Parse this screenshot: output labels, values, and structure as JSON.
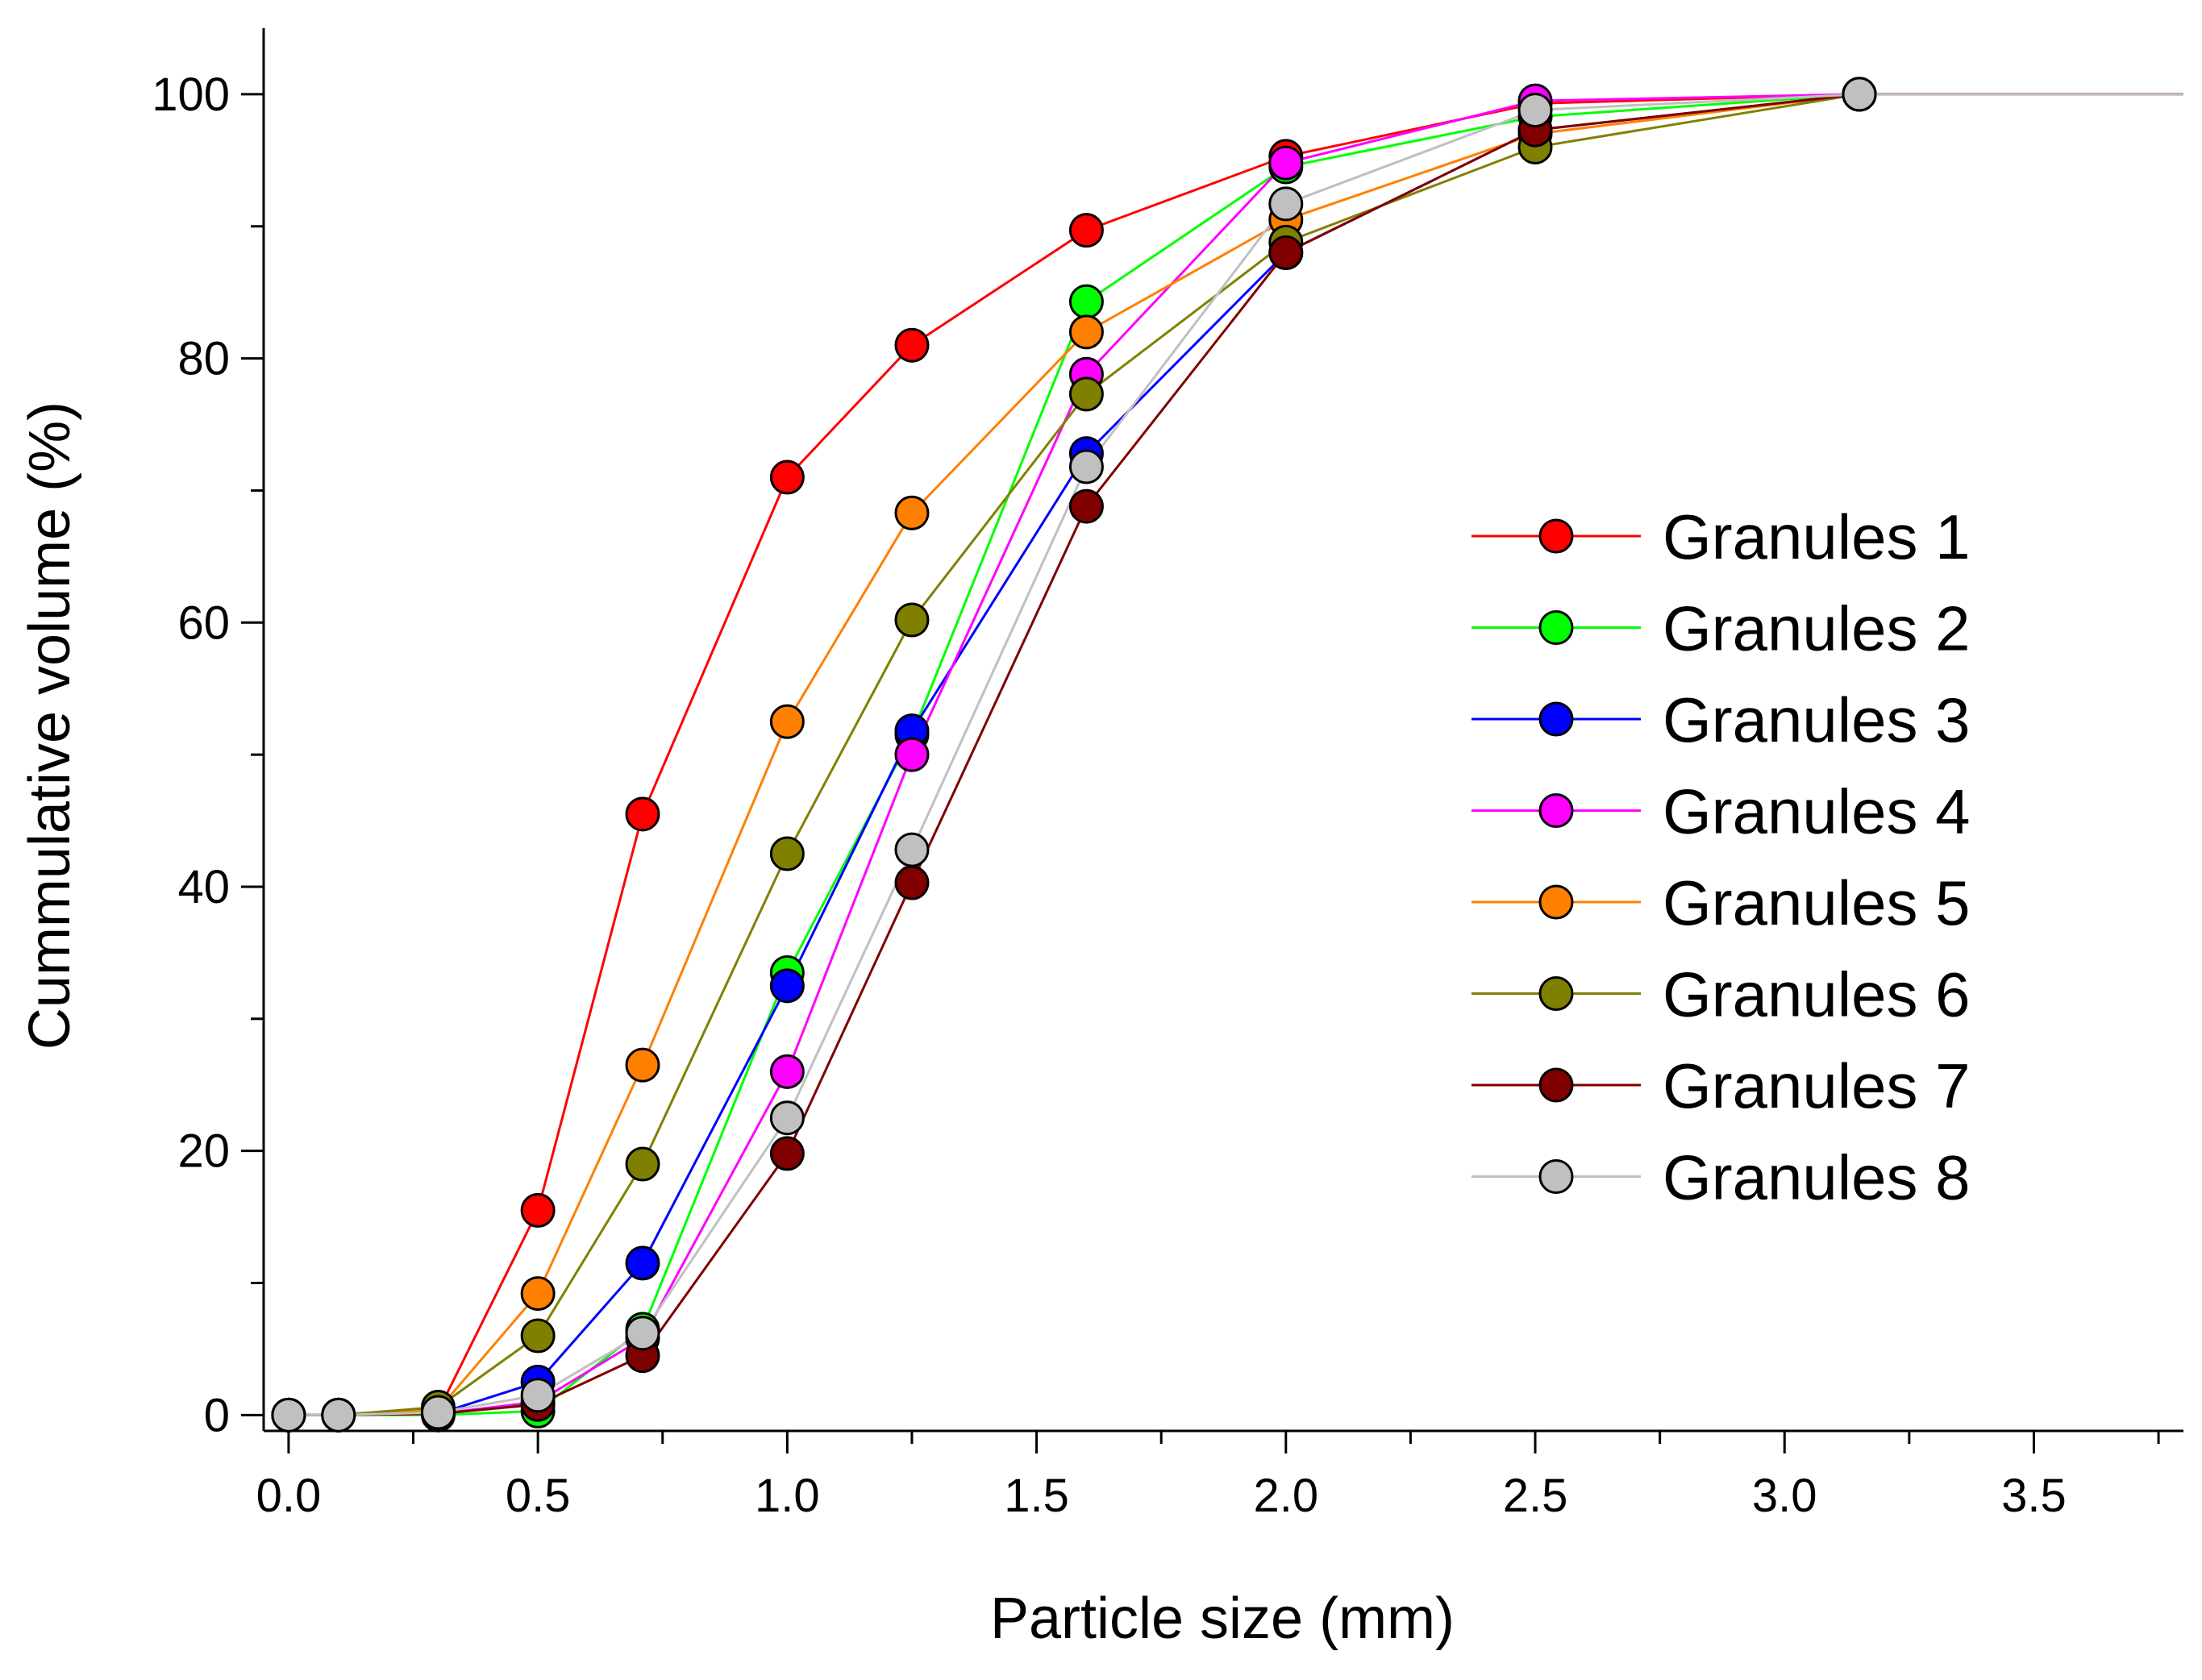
{
  "chart_data": {
    "type": "line",
    "title": "",
    "xlabel": "Particle size (mm)",
    "ylabel": "Cummulative volume (%)",
    "xlim": [
      -0.05,
      3.8
    ],
    "ylim": [
      -1.2,
      105
    ],
    "xticks": [
      0.0,
      0.5,
      1.0,
      1.5,
      2.0,
      2.5,
      3.0,
      3.5
    ],
    "xtick_labels": [
      "0.0",
      "0.5",
      "1.0",
      "1.5",
      "2.0",
      "2.5",
      "3.0",
      "3.5"
    ],
    "yticks": [
      0,
      20,
      40,
      60,
      80,
      100
    ],
    "ytick_labels": [
      "0",
      "20",
      "40",
      "60",
      "80",
      "100"
    ],
    "grid": false,
    "legend_position": "right",
    "series": [
      {
        "name": "Granules 1",
        "color": "#ff0000",
        "x": [
          0,
          0.1,
          0.3,
          0.5,
          0.71,
          1.0,
          1.25,
          1.6,
          2.0,
          2.5,
          3.15,
          3.8
        ],
        "y": [
          0,
          0,
          0.3,
          15.5,
          45.5,
          71,
          81,
          89.7,
          95.3,
          99.3,
          100,
          100
        ]
      },
      {
        "name": "Granules 2",
        "color": "#00ff00",
        "x": [
          0,
          0.1,
          0.3,
          0.5,
          0.71,
          1.0,
          1.25,
          1.6,
          2.0,
          2.5,
          3.15,
          3.8
        ],
        "y": [
          0,
          0,
          0,
          0.3,
          6.5,
          33.5,
          51.5,
          84.3,
          94.5,
          98.3,
          100,
          100
        ]
      },
      {
        "name": "Granules 3",
        "color": "#0000ff",
        "x": [
          0,
          0.1,
          0.3,
          0.5,
          0.71,
          1.0,
          1.25,
          1.6,
          2.0,
          2.5,
          3.15,
          3.8
        ],
        "y": [
          0,
          0,
          0.1,
          2.5,
          11.5,
          32.5,
          51.8,
          72.8,
          88,
          97.3,
          100,
          100
        ]
      },
      {
        "name": "Granules 4",
        "color": "#ff00ff",
        "x": [
          0,
          0.1,
          0.3,
          0.5,
          0.71,
          1.0,
          1.25,
          1.6,
          2.0,
          2.5,
          3.15,
          3.8
        ],
        "y": [
          0,
          0,
          0.1,
          1,
          5.8,
          26,
          50,
          78.8,
          94.8,
          99.5,
          100,
          100
        ]
      },
      {
        "name": "Granules 5",
        "color": "#ff8000",
        "x": [
          0,
          0.1,
          0.3,
          0.5,
          0.71,
          1.0,
          1.25,
          1.6,
          2.0,
          2.5,
          3.15,
          3.8
        ],
        "y": [
          0,
          0,
          0.4,
          9.2,
          26.5,
          52.5,
          68.3,
          82,
          90.5,
          97,
          100,
          100
        ]
      },
      {
        "name": "Granules 6",
        "color": "#808000",
        "x": [
          0,
          0.1,
          0.3,
          0.5,
          0.71,
          1.0,
          1.25,
          1.6,
          2.0,
          2.5,
          3.15,
          3.8
        ],
        "y": [
          0,
          0,
          0.6,
          6,
          19,
          42.5,
          60.2,
          77.3,
          88.8,
          96,
          100,
          100
        ]
      },
      {
        "name": "Granules 7",
        "color": "#800000",
        "x": [
          0,
          0.1,
          0.3,
          0.5,
          0.71,
          1.0,
          1.25,
          1.6,
          2.0,
          2.5,
          3.15,
          3.8
        ],
        "y": [
          0,
          0,
          0.1,
          0.8,
          4.5,
          19.8,
          40.3,
          68.8,
          88,
          97.3,
          100,
          100
        ]
      },
      {
        "name": "Granules 8",
        "color": "#c0c0c0",
        "x": [
          0,
          0.1,
          0.3,
          0.5,
          0.71,
          1.0,
          1.25,
          1.6,
          2.0,
          2.5,
          3.15,
          3.8
        ],
        "y": [
          0,
          0,
          0.2,
          1.5,
          6.2,
          22.5,
          42.8,
          71.8,
          91.7,
          98.8,
          100,
          100
        ]
      }
    ]
  }
}
